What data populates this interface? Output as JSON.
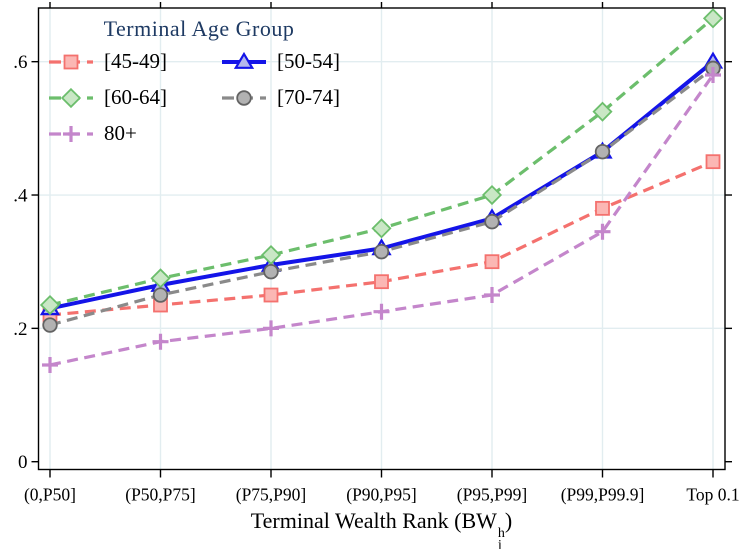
{
  "chart_data": {
    "type": "line",
    "legend_title": "Terminal Age Group",
    "legend_position": "top-left-inside",
    "grid": true,
    "categories": [
      "(0,P50]",
      "(P50,P75]",
      "(P75,P90]",
      "(P90,P95]",
      "(P95,P99]",
      "(P99,P99.9]",
      "Top 0.1"
    ],
    "series": [
      {
        "name": "[45-49]",
        "marker": "square",
        "line": "dashed",
        "color": "#f4716e",
        "fill": "#fbb7b4",
        "values": [
          0.22,
          0.235,
          0.25,
          0.27,
          0.3,
          0.38,
          0.45
        ]
      },
      {
        "name": "[50-54]",
        "marker": "triangle",
        "line": "solid",
        "color": "#1414e8",
        "fill": "#b5b8ec",
        "values": [
          0.23,
          0.265,
          0.295,
          0.32,
          0.365,
          0.465,
          0.6
        ]
      },
      {
        "name": "[60-64]",
        "marker": "diamond",
        "line": "dashed",
        "color": "#6cbe6c",
        "fill": "#c9e7c5",
        "values": [
          0.235,
          0.275,
          0.31,
          0.35,
          0.4,
          0.525,
          0.665
        ]
      },
      {
        "name": "[70-74]",
        "marker": "circle",
        "line": "dashed",
        "color": "#8a8a8a",
        "fill": "#b2b2b2",
        "values": [
          0.205,
          0.25,
          0.285,
          0.315,
          0.36,
          0.465,
          0.59
        ]
      },
      {
        "name": "80+",
        "marker": "plus",
        "line": "dashed",
        "color": "#c486cb",
        "fill": "#c486cb",
        "values": [
          0.145,
          0.18,
          0.2,
          0.225,
          0.25,
          0.345,
          0.58
        ]
      }
    ],
    "xlabel": {
      "prefix": "Terminal Wealth Rank (BW",
      "sup": "h",
      "sub": "j",
      "suffix": ")"
    },
    "ylabel": "",
    "yticks": [
      0,
      0.2,
      0.4,
      0.6
    ],
    "ytick_labels": [
      "0",
      ".2",
      ".4",
      ".6"
    ],
    "ylim": [
      0,
      0.69
    ]
  },
  "styles": {
    "grid_color": "#e2edf0",
    "axis_color": "#000000",
    "legend_title_color": "#1e3a63",
    "background": "#ffffff"
  }
}
